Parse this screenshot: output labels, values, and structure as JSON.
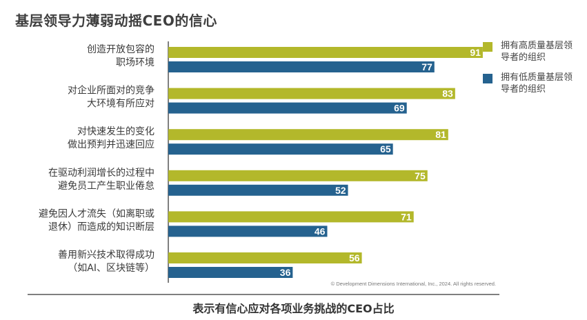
{
  "title": "基层领导力薄弱动摇CEO的信心",
  "footer": "表示有信心应对各项业务挑战的CEO占比",
  "copyright": "© Development Dimensions International, Inc., 2024. All rights reserved.",
  "colors": {
    "high": "#b3b82b",
    "low": "#25628f",
    "axis": "#555555"
  },
  "legend": [
    {
      "key": "high",
      "label": "拥有高质量基层领导者的组织"
    },
    {
      "key": "low",
      "label": "拥有低质量基层领导者的组织"
    }
  ],
  "chart_data": {
    "type": "bar",
    "orientation": "horizontal",
    "categories": [
      [
        "创造开放包容的",
        "职场环境"
      ],
      [
        "对企业所面对的竞争",
        "大环境有所应对"
      ],
      [
        "对快速发生的变化",
        "做出预判并迅速回应"
      ],
      [
        "在驱动利润增长的过程中",
        "避免员工产生职业倦怠"
      ],
      [
        "避免因人才流失（如离职或",
        "退休）而造成的知识断层"
      ],
      [
        "善用新兴技术取得成功",
        "（如AI、区块链等）"
      ]
    ],
    "series": [
      {
        "name": "拥有高质量基层领导者的组织",
        "values": [
          91,
          83,
          81,
          75,
          71,
          56
        ]
      },
      {
        "name": "拥有低质量基层领导者的组织",
        "values": [
          77,
          69,
          65,
          52,
          46,
          36
        ]
      }
    ],
    "xlim": [
      0,
      100
    ],
    "grid": false,
    "data_labels": true,
    "legend_position": "right"
  }
}
